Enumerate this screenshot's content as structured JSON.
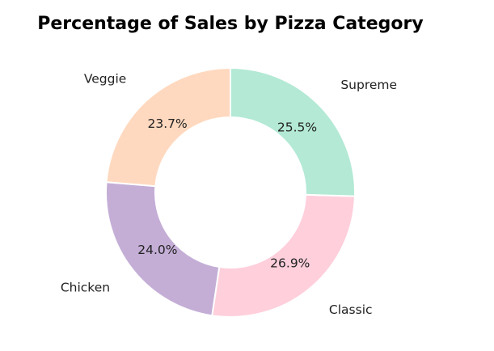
{
  "chart_data": {
    "type": "pie",
    "title": "Percentage of Sales by Pizza Category",
    "donut": true,
    "categories": [
      "Veggie",
      "Chicken",
      "Classic",
      "Supreme"
    ],
    "values": [
      23.7,
      24.0,
      26.9,
      25.5
    ],
    "value_labels": [
      "23.7%",
      "24.0%",
      "26.9%",
      "25.5%"
    ],
    "colors": [
      "#ffd9bf",
      "#c4aed6",
      "#ffcfdc",
      "#b3e9d5"
    ],
    "start_angle_deg": 90,
    "direction": "counterclockwise",
    "legend": "none"
  }
}
